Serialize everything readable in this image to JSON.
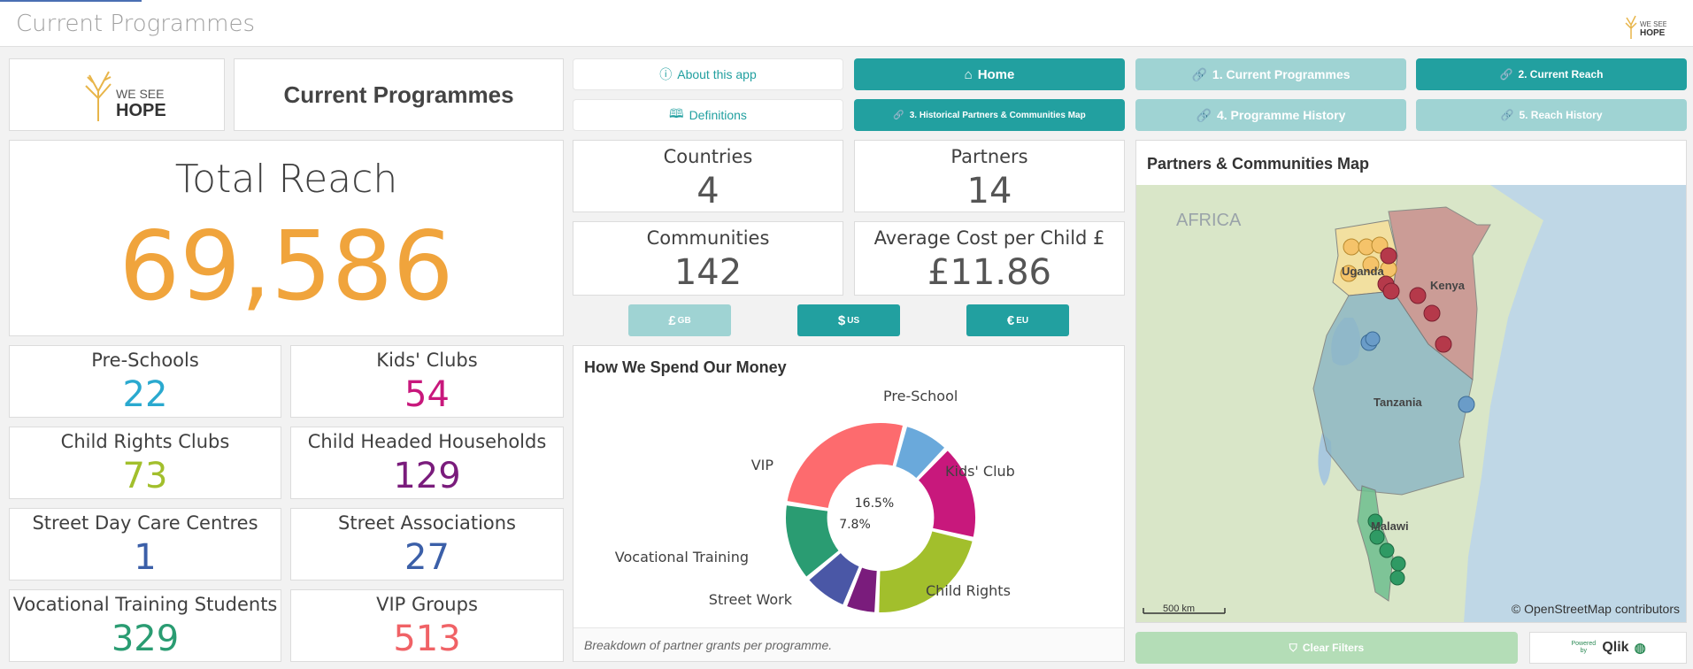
{
  "header": {
    "title": "Current Programmes",
    "brand_line1": "WE SEE",
    "brand_line2": "HOPE"
  },
  "title_card": {
    "text": "Current Programmes"
  },
  "logo_card": {
    "line1": "WE SEE",
    "line2": "HOPE"
  },
  "total_reach": {
    "label": "Total Reach",
    "value": "69,586",
    "color": "#f0a43c"
  },
  "stats": [
    {
      "label": "Pre-Schools",
      "value": "22",
      "color": "#2aa9cf"
    },
    {
      "label": "Kids' Clubs",
      "value": "54",
      "color": "#c8187c"
    },
    {
      "label": "Child Rights Clubs",
      "value": "73",
      "color": "#a2bf2c"
    },
    {
      "label": "Child Headed Households",
      "value": "129",
      "color": "#7a1c7c"
    },
    {
      "label": "Street Day Care Centres",
      "value": "1",
      "color": "#3b5fa8"
    },
    {
      "label": "Street Associations",
      "value": "27",
      "color": "#3b5fa8"
    },
    {
      "label": "Vocational Training Students",
      "value": "329",
      "color": "#2a9c72"
    },
    {
      "label": "VIP Groups",
      "value": "513",
      "color": "#f06266"
    }
  ],
  "nav": {
    "about": "About this app",
    "definitions": "Definitions",
    "home": "Home",
    "historical_map": "3. Historical Partners & Communities Map",
    "current_programmes": "1. Current Programmes",
    "current_reach": "2. Current Reach",
    "programme_history": "4. Programme History",
    "reach_history": "5. Reach History"
  },
  "kpis": {
    "countries": {
      "label": "Countries",
      "value": "4"
    },
    "partners": {
      "label": "Partners",
      "value": "14"
    },
    "communities": {
      "label": "Communities",
      "value": "142"
    },
    "avg_cost": {
      "label": "Average Cost per Child £",
      "value": "£11.86"
    }
  },
  "currency": [
    {
      "symbol": "£",
      "code": "GB",
      "active": false
    },
    {
      "symbol": "$",
      "code": "US",
      "active": true
    },
    {
      "symbol": "€",
      "code": "EU",
      "active": true
    }
  ],
  "spend_chart": {
    "title": "How We Spend Our Money",
    "footnote": "Breakdown of partner grants per programme.",
    "inner_labels": [
      "16.5%",
      "7.8%"
    ]
  },
  "chart_data": {
    "type": "pie",
    "title": "How We Spend Our Money",
    "categories": [
      "Pre-School",
      "Kids' Club",
      "Child Rights",
      "",
      "Street Work",
      "Vocational Training",
      "VIP"
    ],
    "values": [
      8.0,
      16.5,
      22.0,
      5.5,
      7.8,
      13.5,
      26.7
    ],
    "colors": [
      "#6aa9db",
      "#c8187c",
      "#a2bf2c",
      "#7a1c7c",
      "#4a57a6",
      "#2a9c72",
      "#fd6b6e"
    ],
    "inner_radius_ratio": 0.55
  },
  "map": {
    "title": "Partners & Communities Map",
    "labels": {
      "africa": "AFRICA",
      "uganda": "Uganda",
      "kenya": "Kenya",
      "tanzania": "Tanzania",
      "malawi": "Malawi"
    },
    "scale": "500 km",
    "attribution": "© OpenStreetMap contributors"
  },
  "footer": {
    "clear_filters": "Clear Filters",
    "powered_by": "Powered by",
    "qlik": "Qlik"
  }
}
